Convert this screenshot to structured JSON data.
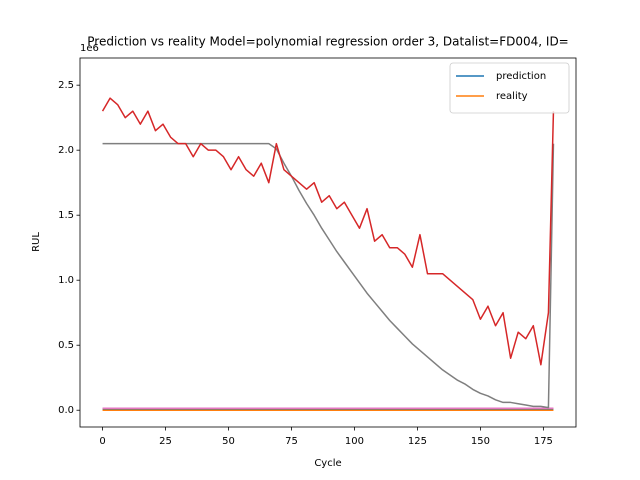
{
  "chart_data": {
    "type": "line",
    "title": "Prediction vs reality Model=polynomial regression order 3, Datalist=FD004, ID=",
    "x_label": "Cycle",
    "y_label": "RUL",
    "y_offset_label": "1e6",
    "x": [
      0,
      3,
      6,
      9,
      12,
      15,
      18,
      21,
      24,
      27,
      30,
      33,
      36,
      39,
      42,
      45,
      48,
      51,
      54,
      57,
      60,
      63,
      66,
      69,
      72,
      75,
      78,
      81,
      84,
      87,
      90,
      93,
      96,
      99,
      102,
      105,
      108,
      111,
      114,
      117,
      120,
      123,
      126,
      129,
      132,
      135,
      138,
      141,
      144,
      147,
      150,
      153,
      156,
      159,
      162,
      165,
      168,
      171,
      174,
      177,
      179
    ],
    "series": [
      {
        "name": "prediction",
        "color": "#1f77b4",
        "values": [
          0.01,
          0.01,
          0.01,
          0.01,
          0.01,
          0.01,
          0.01,
          0.01,
          0.01,
          0.01,
          0.01,
          0.01,
          0.01,
          0.01,
          0.01,
          0.01,
          0.01,
          0.01,
          0.01,
          0.01,
          0.01,
          0.01,
          0.01,
          0.01,
          0.01,
          0.01,
          0.01,
          0.01,
          0.01,
          0.01,
          0.01,
          0.01,
          0.01,
          0.01,
          0.01,
          0.01,
          0.01,
          0.01,
          0.01,
          0.01,
          0.01,
          0.01,
          0.01,
          0.01,
          0.01,
          0.01,
          0.01,
          0.01,
          0.01,
          0.01,
          0.01,
          0.01,
          0.01,
          0.01,
          0.01,
          0.01,
          0.01,
          0.01,
          0.01,
          0.01,
          0.01
        ]
      },
      {
        "name": "reality",
        "color": "#ff7f0e",
        "values": [
          0.0,
          0.0,
          0.0,
          0.0,
          0.0,
          0.0,
          0.0,
          0.0,
          0.0,
          0.0,
          0.0,
          0.0,
          0.0,
          0.0,
          0.0,
          0.0,
          0.0,
          0.0,
          0.0,
          0.0,
          0.0,
          0.0,
          0.0,
          0.0,
          0.0,
          0.0,
          0.0,
          0.0,
          0.0,
          0.0,
          0.0,
          0.0,
          0.0,
          0.0,
          0.0,
          0.0,
          0.0,
          0.0,
          0.0,
          0.0,
          0.0,
          0.0,
          0.0,
          0.0,
          0.0,
          0.0,
          0.0,
          0.0,
          0.0,
          0.0,
          0.0,
          0.0,
          0.0,
          0.0,
          0.0,
          0.0,
          0.0,
          0.0,
          0.0,
          0.0,
          0.0
        ]
      },
      {
        "name": null,
        "color": "#e377c2",
        "values": [
          0.015,
          0.015,
          0.015,
          0.015,
          0.015,
          0.015,
          0.015,
          0.015,
          0.015,
          0.015,
          0.015,
          0.015,
          0.015,
          0.015,
          0.015,
          0.015,
          0.015,
          0.015,
          0.015,
          0.015,
          0.015,
          0.015,
          0.015,
          0.015,
          0.015,
          0.015,
          0.015,
          0.015,
          0.015,
          0.015,
          0.015,
          0.015,
          0.015,
          0.015,
          0.015,
          0.015,
          0.015,
          0.015,
          0.015,
          0.015,
          0.015,
          0.015,
          0.015,
          0.015,
          0.015,
          0.015,
          0.015,
          0.015,
          0.015,
          0.015,
          0.015,
          0.015,
          0.015,
          0.015,
          0.015,
          0.015,
          0.015,
          0.015,
          0.015,
          0.015,
          0.015
        ]
      },
      {
        "name": null,
        "color": "#7f7f7f",
        "values": [
          2.05,
          2.05,
          2.05,
          2.05,
          2.05,
          2.05,
          2.05,
          2.05,
          2.05,
          2.05,
          2.05,
          2.05,
          2.05,
          2.05,
          2.05,
          2.05,
          2.05,
          2.05,
          2.05,
          2.05,
          2.05,
          2.05,
          2.05,
          2.01,
          1.9,
          1.8,
          1.69,
          1.59,
          1.5,
          1.4,
          1.31,
          1.22,
          1.14,
          1.06,
          0.98,
          0.9,
          0.83,
          0.76,
          0.69,
          0.63,
          0.57,
          0.51,
          0.46,
          0.41,
          0.36,
          0.31,
          0.27,
          0.23,
          0.2,
          0.16,
          0.13,
          0.11,
          0.08,
          0.06,
          0.06,
          0.05,
          0.04,
          0.03,
          0.03,
          0.02,
          2.05
        ]
      },
      {
        "name": null,
        "color": "#d62728",
        "values": [
          2.3,
          2.4,
          2.35,
          2.25,
          2.3,
          2.2,
          2.3,
          2.15,
          2.2,
          2.1,
          2.05,
          2.05,
          1.95,
          2.05,
          2.0,
          2.0,
          1.95,
          1.85,
          1.95,
          1.85,
          1.8,
          1.9,
          1.75,
          2.05,
          1.85,
          1.8,
          1.75,
          1.7,
          1.75,
          1.6,
          1.65,
          1.55,
          1.6,
          1.5,
          1.4,
          1.55,
          1.3,
          1.35,
          1.25,
          1.25,
          1.2,
          1.1,
          1.35,
          1.05,
          1.05,
          1.05,
          1.0,
          0.95,
          0.9,
          0.85,
          0.7,
          0.8,
          0.65,
          0.75,
          0.4,
          0.6,
          0.55,
          0.65,
          0.35,
          0.75,
          2.3
        ]
      }
    ],
    "xlim": [
      -8.95,
      187.95
    ],
    "ylim": [
      -0.129,
      2.709
    ],
    "xticks": [
      0,
      25,
      50,
      75,
      100,
      125,
      150,
      175
    ],
    "yticks": [
      {
        "value": 0,
        "label": "0.0"
      },
      {
        "value": 0.5,
        "label": "0.5"
      },
      {
        "value": 1,
        "label": "1.0"
      },
      {
        "value": 1.5,
        "label": "1.5"
      },
      {
        "value": 2,
        "label": "2.0"
      },
      {
        "value": 2.5,
        "label": "2.5"
      }
    ],
    "legend": "upper right"
  }
}
